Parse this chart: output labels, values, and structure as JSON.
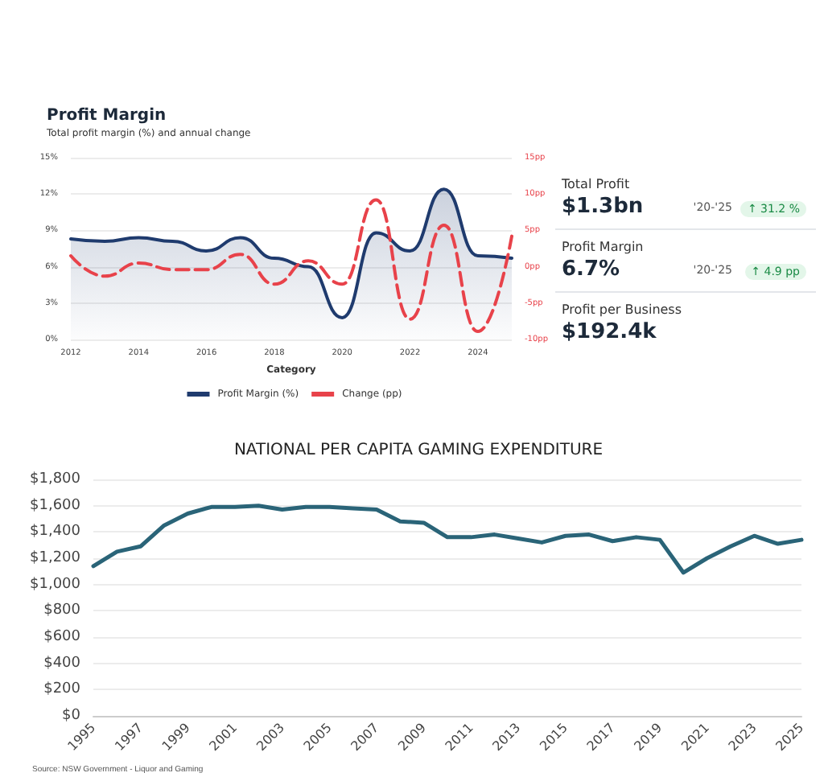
{
  "chart_data": [
    {
      "type": "line",
      "title": "Profit Margin",
      "subtitle": "Total profit margin (%) and annual change",
      "xlabel": "Category",
      "x": [
        2012,
        2013,
        2014,
        2015,
        2016,
        2017,
        2018,
        2019,
        2020,
        2021,
        2022,
        2023,
        2024,
        2025
      ],
      "series": [
        {
          "name": "Profit Margin (%)",
          "type": "area",
          "color": "#1f3b6e",
          "line_style": "solid",
          "values": [
            8.3,
            8.1,
            8.4,
            8.1,
            7.3,
            8.4,
            6.7,
            6.0,
            1.8,
            8.8,
            7.3,
            12.4,
            6.9,
            6.7
          ]
        },
        {
          "name": "Change (pp)",
          "type": "line",
          "axis": "y2",
          "color": "#e8424a",
          "line_style": "dashed",
          "values": [
            1.5,
            -1.3,
            0.5,
            -0.4,
            -0.4,
            1.7,
            -2.4,
            0.8,
            -2.4,
            9.2,
            -7.2,
            5.7,
            -8.9,
            4.2
          ]
        }
      ],
      "xlim": [
        2012,
        2025
      ],
      "xticks": [
        2012,
        2014,
        2016,
        2018,
        2020,
        2022,
        2024
      ],
      "ylim": [
        0,
        15
      ],
      "yticks": [
        {
          "value": 0,
          "label": "0%"
        },
        {
          "value": 3,
          "label": "3%"
        },
        {
          "value": 6,
          "label": "6%"
        },
        {
          "value": 9,
          "label": "9%"
        },
        {
          "value": 12,
          "label": "12%"
        },
        {
          "value": 15,
          "label": "15%"
        }
      ],
      "y2lim": [
        -10,
        15
      ],
      "y2ticks": [
        {
          "value": -10,
          "label": "-10pp"
        },
        {
          "value": -5,
          "label": "-5pp"
        },
        {
          "value": 0,
          "label": "0pp"
        },
        {
          "value": 5,
          "label": "5pp"
        },
        {
          "value": 10,
          "label": "10pp"
        },
        {
          "value": 15,
          "label": "15pp"
        }
      ],
      "grid": "y",
      "legend": "bottom",
      "marker": "none"
    },
    {
      "type": "other",
      "annotations": [
        "Total Profit",
        "$1.3bn",
        "'20-'25",
        "↑ 31.2 %",
        "Profit Margin",
        "6.7%",
        "'20-'25",
        "↑ 4.9 pp",
        "Profit per Business",
        "$192.4k"
      ]
    },
    {
      "type": "line",
      "title": "NATIONAL PER CAPITA GAMING EXPENDITURE",
      "x": [
        1995,
        1996,
        1997,
        1998,
        1999,
        2000,
        2001,
        2002,
        2003,
        2004,
        2005,
        2006,
        2007,
        2008,
        2009,
        2010,
        2011,
        2012,
        2013,
        2014,
        2015,
        2016,
        2017,
        2018,
        2019,
        2020,
        2021,
        2022,
        2023,
        2024,
        2025
      ],
      "series": [
        {
          "color": "#2a6478",
          "values": [
            1140,
            1250,
            1290,
            1450,
            1540,
            1590,
            1590,
            1600,
            1570,
            1590,
            1590,
            1580,
            1570,
            1480,
            1470,
            1360,
            1360,
            1380,
            1350,
            1320,
            1370,
            1380,
            1330,
            1360,
            1340,
            1090,
            1200,
            1290,
            1370,
            1310,
            1340
          ]
        }
      ],
      "xlim": [
        1995,
        2025
      ],
      "xticks": [
        1995,
        1997,
        1999,
        2001,
        2003,
        2005,
        2007,
        2009,
        2011,
        2013,
        2015,
        2017,
        2019,
        2021,
        2023,
        2025
      ],
      "ylim": [
        0,
        1800
      ],
      "yticks": [
        {
          "value": 0,
          "label": "$0"
        },
        {
          "value": 200,
          "label": "$200"
        },
        {
          "value": 400,
          "label": "$400"
        },
        {
          "value": 600,
          "label": "$600"
        },
        {
          "value": 800,
          "label": "$800"
        },
        {
          "value": 1000,
          "label": "$1,000"
        },
        {
          "value": 1200,
          "label": "$1,200"
        },
        {
          "value": 1400,
          "label": "$1,400"
        },
        {
          "value": 1600,
          "label": "$1,600"
        },
        {
          "value": 1800,
          "label": "$1,800"
        }
      ],
      "grid": "y",
      "marker": "none",
      "annotations": [
        "Source: NSW Government - Liquor and Gaming"
      ]
    }
  ]
}
